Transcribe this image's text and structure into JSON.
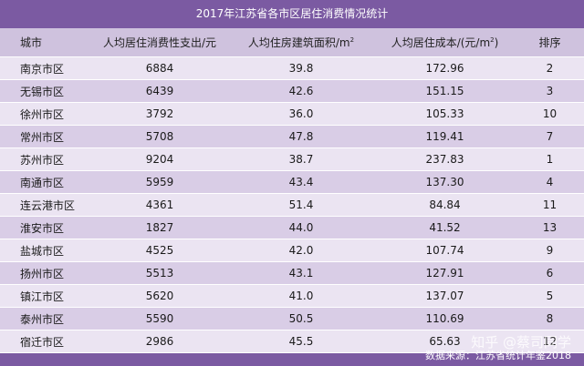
{
  "title": "2017年江苏省各市区居住消费情况统计",
  "headers": {
    "city": "城市",
    "spending": "人均居住消费性支出/元",
    "area": "人均住房建筑面积/m",
    "area_sup": "2",
    "cost": "人均居住成本/(元/m",
    "cost_sup": "2",
    "cost_tail": ")",
    "rank": "排序"
  },
  "rows": [
    {
      "city": "南京市区",
      "spending": "6884",
      "area": "39.8",
      "cost": "172.96",
      "rank": "2"
    },
    {
      "city": "无锡市区",
      "spending": "6439",
      "area": "42.6",
      "cost": "151.15",
      "rank": "3"
    },
    {
      "city": "徐州市区",
      "spending": "3792",
      "area": "36.0",
      "cost": "105.33",
      "rank": "10"
    },
    {
      "city": "常州市区",
      "spending": "5708",
      "area": "47.8",
      "cost": "119.41",
      "rank": "7"
    },
    {
      "city": "苏州市区",
      "spending": "9204",
      "area": "38.7",
      "cost": "237.83",
      "rank": "1"
    },
    {
      "city": "南通市区",
      "spending": "5959",
      "area": "43.4",
      "cost": "137.30",
      "rank": "4"
    },
    {
      "city": "连云港市区",
      "spending": "4361",
      "area": "51.4",
      "cost": "84.84",
      "rank": "11"
    },
    {
      "city": "淮安市区",
      "spending": "1827",
      "area": "44.0",
      "cost": "41.52",
      "rank": "13"
    },
    {
      "city": "盐城市区",
      "spending": "4525",
      "area": "42.0",
      "cost": "107.74",
      "rank": "9"
    },
    {
      "city": "扬州市区",
      "spending": "5513",
      "area": "43.1",
      "cost": "127.91",
      "rank": "6"
    },
    {
      "city": "镇江市区",
      "spending": "5620",
      "area": "41.0",
      "cost": "137.07",
      "rank": "5"
    },
    {
      "city": "泰州市区",
      "spending": "5590",
      "area": "50.5",
      "cost": "110.69",
      "rank": "8"
    },
    {
      "city": "宿迁市区",
      "spending": "2986",
      "area": "45.5",
      "cost": "65.63",
      "rank": "12"
    }
  ],
  "watermark": "知乎 @蔡司同学",
  "source": "数据来源：江苏省统计年鉴2018",
  "colors": {
    "header_bg": "#7b5aa2",
    "row_light": "#ebe4f2",
    "row_dark": "#d9cde6"
  }
}
